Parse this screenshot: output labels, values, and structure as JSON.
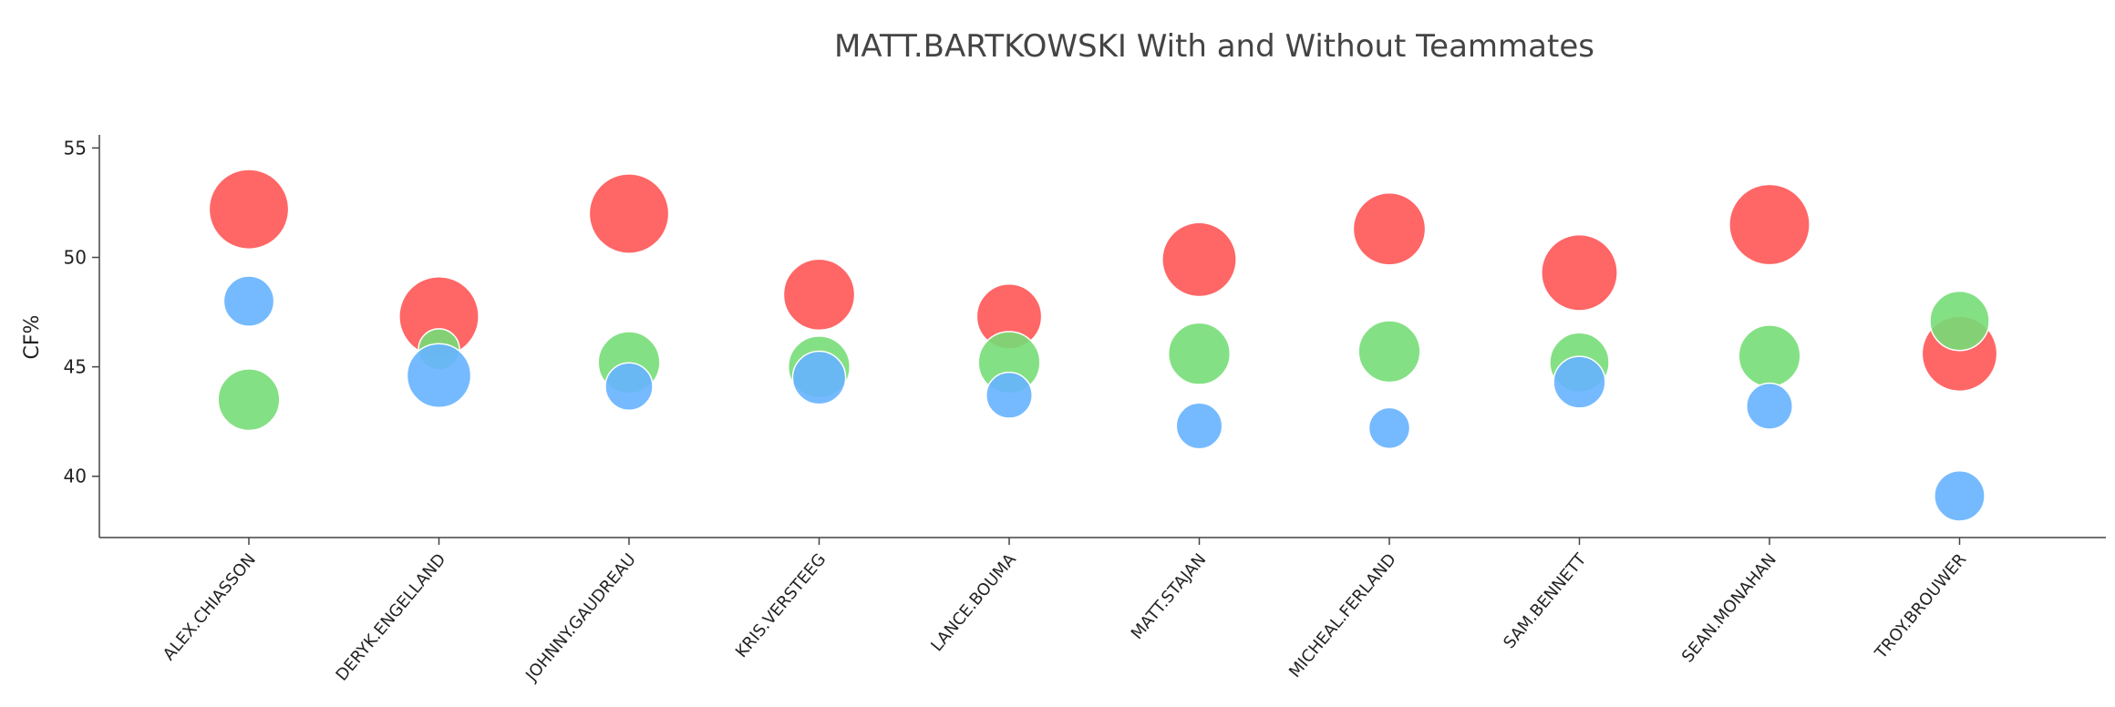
{
  "chart_data": {
    "type": "scatter",
    "title": "MATT.BARTKOWSKI With and Without Teammates",
    "xlabel": "",
    "ylabel": "CF%",
    "ylim": [
      37.2,
      55.6
    ],
    "yticks": [
      40,
      45,
      50,
      55
    ],
    "grid": false,
    "legend": "none",
    "categories": [
      "ALEX.CHIASSON",
      "DERYK.ENGELLAND",
      "JOHNNY.GAUDREAU",
      "KRIS.VERSTEEG",
      "LANCE.BOUMA",
      "MATT.STAJAN",
      "MICHEAL.FERLAND",
      "SAM.BENNETT",
      "SEAN.MONAHAN",
      "TROY.BROUWER"
    ],
    "series": [
      {
        "color": "#ff5555",
        "opacity": 0.9,
        "values": [
          52.2,
          47.3,
          52.0,
          48.3,
          47.3,
          49.9,
          51.3,
          49.3,
          51.5,
          45.6
        ],
        "sizes": [
          0.9,
          0.9,
          0.9,
          0.72,
          0.6,
          0.78,
          0.74,
          0.82,
          0.92,
          0.8
        ]
      },
      {
        "color": "#77dd77",
        "opacity": 0.9,
        "values": [
          43.5,
          45.8,
          45.2,
          45.0,
          45.2,
          45.6,
          45.7,
          45.2,
          45.5,
          47.1
        ],
        "sizes": [
          0.54,
          0.24,
          0.54,
          0.54,
          0.54,
          0.54,
          0.54,
          0.5,
          0.54,
          0.5
        ]
      },
      {
        "color": "#66b2ff",
        "opacity": 0.9,
        "values": [
          48.0,
          44.6,
          44.1,
          44.5,
          43.7,
          42.3,
          42.2,
          44.3,
          43.2,
          39.1
        ],
        "sizes": [
          0.36,
          0.58,
          0.32,
          0.4,
          0.3,
          0.3,
          0.24,
          0.38,
          0.3,
          0.36
        ]
      }
    ]
  }
}
